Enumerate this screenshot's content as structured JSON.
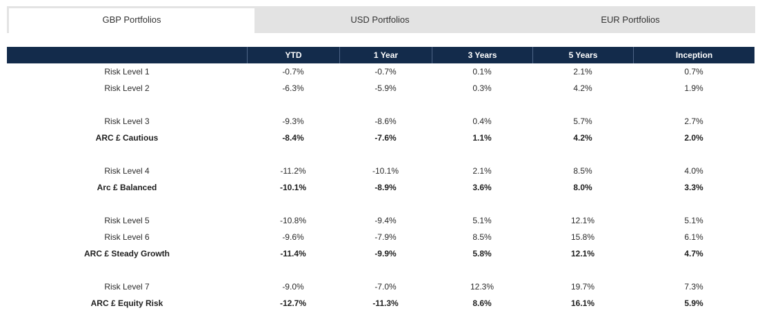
{
  "tabs": [
    {
      "label": "GBP Portfolios",
      "active": true
    },
    {
      "label": "USD Portfolios",
      "active": false
    },
    {
      "label": "EUR Portfolios",
      "active": false
    }
  ],
  "table": {
    "headers": [
      "",
      "YTD",
      "1 Year",
      "3 Years",
      "5 Years",
      "Inception"
    ],
    "rows": [
      {
        "name": "Risk Level 1",
        "cells": [
          "-0.7%",
          "-0.7%",
          "0.1%",
          "2.1%",
          "0.7%"
        ],
        "benchmark": false,
        "group_start": false
      },
      {
        "name": "Risk Level 2",
        "cells": [
          "-6.3%",
          "-5.9%",
          "0.3%",
          "4.2%",
          "1.9%"
        ],
        "benchmark": false,
        "group_start": false
      },
      {
        "name": "Risk Level 3",
        "cells": [
          "-9.3%",
          "-8.6%",
          "0.4%",
          "5.7%",
          "2.7%"
        ],
        "benchmark": false,
        "group_start": true
      },
      {
        "name": "ARC £ Cautious",
        "cells": [
          "-8.4%",
          "-7.6%",
          "1.1%",
          "4.2%",
          "2.0%"
        ],
        "benchmark": true,
        "group_start": false
      },
      {
        "name": "Risk Level 4",
        "cells": [
          "-11.2%",
          "-10.1%",
          "2.1%",
          "8.5%",
          "4.0%"
        ],
        "benchmark": false,
        "group_start": true
      },
      {
        "name": "Arc £ Balanced",
        "cells": [
          "-10.1%",
          "-8.9%",
          "3.6%",
          "8.0%",
          "3.3%"
        ],
        "benchmark": true,
        "group_start": false
      },
      {
        "name": "Risk Level 5",
        "cells": [
          "-10.8%",
          "-9.4%",
          "5.1%",
          "12.1%",
          "5.1%"
        ],
        "benchmark": false,
        "group_start": true
      },
      {
        "name": "Risk Level 6",
        "cells": [
          "-9.6%",
          "-7.9%",
          "8.5%",
          "15.8%",
          "6.1%"
        ],
        "benchmark": false,
        "group_start": false
      },
      {
        "name": "ARC £ Steady Growth",
        "cells": [
          "-11.4%",
          "-9.9%",
          "5.8%",
          "12.1%",
          "4.7%"
        ],
        "benchmark": true,
        "group_start": false
      },
      {
        "name": "Risk Level 7",
        "cells": [
          "-9.0%",
          "-7.0%",
          "12.3%",
          "19.7%",
          "7.3%"
        ],
        "benchmark": false,
        "group_start": true
      },
      {
        "name": "ARC £ Equity Risk",
        "cells": [
          "-12.7%",
          "-11.3%",
          "8.6%",
          "16.1%",
          "5.9%"
        ],
        "benchmark": true,
        "group_start": false
      }
    ]
  },
  "colors": {
    "header_bg": "#132b4b",
    "tabs_bg": "#e3e3e3",
    "active_tab_bg": "#ffffff"
  }
}
